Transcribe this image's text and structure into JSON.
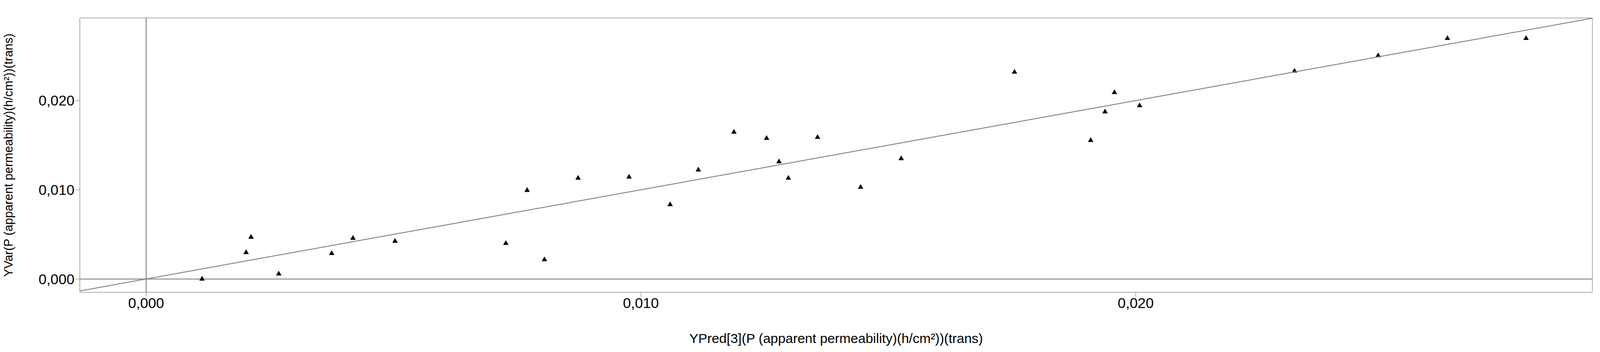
{
  "chart_data": {
    "type": "scatter",
    "xlabel": "YPred[3](P (apparent permeability)(h/cm²))(trans)",
    "ylabel": "YVar(P (apparent permeability)(h/cm²))(trans)",
    "xlim": [
      -0.00134,
      0.02923
    ],
    "ylim": [
      -0.00149,
      0.02926
    ],
    "xticks": [
      {
        "value": 0,
        "label": "0,000"
      },
      {
        "value": 0.01,
        "label": "0,010"
      },
      {
        "value": 0.02,
        "label": "0,020"
      }
    ],
    "yticks": [
      {
        "value": 0,
        "label": "0,000"
      },
      {
        "value": 0.01,
        "label": "0,010"
      },
      {
        "value": 0.02,
        "label": "0,020"
      }
    ],
    "grid": true,
    "series": [
      {
        "type": "scatter",
        "marker": "triangle",
        "color": "#000000",
        "x": [
          0.00113,
          0.00202,
          0.00212,
          0.00268,
          0.00375,
          0.00418,
          0.00503,
          0.00727,
          0.0077,
          0.00805,
          0.00873,
          0.00976,
          0.01059,
          0.01116,
          0.01188,
          0.01254,
          0.01279,
          0.01298,
          0.01357,
          0.01444,
          0.01526,
          0.01755,
          0.01909,
          0.01938,
          0.01957,
          0.02008,
          0.02321,
          0.0249,
          0.0263,
          0.02789
        ],
        "values": [
          0.0,
          0.00297,
          0.00469,
          0.00057,
          0.00286,
          0.00457,
          0.00423,
          0.004,
          0.00994,
          0.00217,
          0.01131,
          0.01143,
          0.00834,
          0.01223,
          0.01646,
          0.01577,
          0.01314,
          0.01131,
          0.01589,
          0.01029,
          0.01349,
          0.0232,
          0.01554,
          0.01874,
          0.02091,
          0.01943,
          0.02331,
          0.02503,
          0.02697,
          0.02697
        ]
      },
      {
        "type": "line",
        "line_style": "solid",
        "color": "#808080",
        "x": [
          -0.00134,
          0.02923
        ],
        "values": [
          -0.00134,
          0.02923
        ]
      }
    ]
  }
}
